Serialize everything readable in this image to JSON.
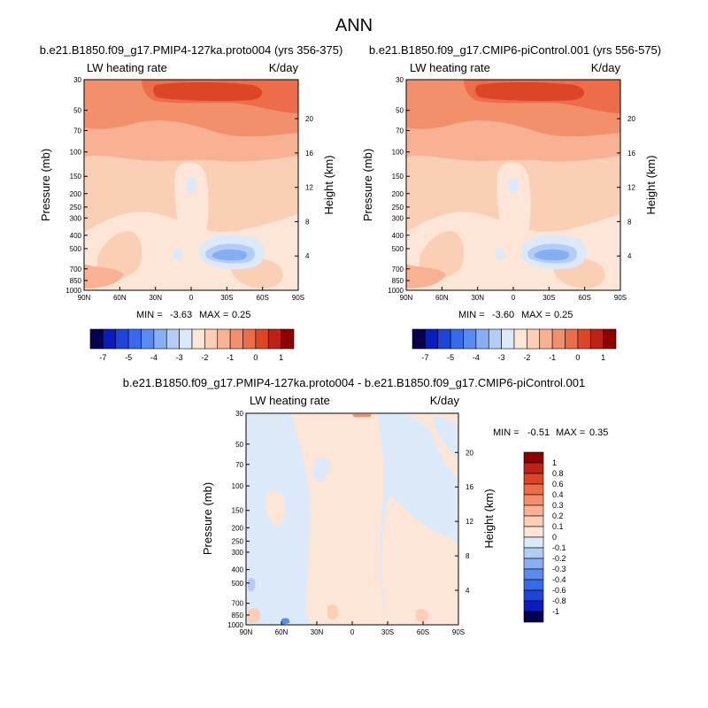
{
  "page": {
    "title": "ANN"
  },
  "chart_data": [
    {
      "type": "contour",
      "title": "b.e21.B1850.f09_g17.PMIP4-127ka.proto004 (yrs 356-375)",
      "left_label": "LW heating rate",
      "right_label": "K/day",
      "ylabel": "Pressure (mb)",
      "ylabel_right": "Height (km)",
      "x_ticks": [
        "90N",
        "60N",
        "30N",
        "0",
        "30S",
        "60S",
        "90S"
      ],
      "p_ticks": [
        "30",
        "50",
        "70",
        "100",
        "150",
        "200",
        "250",
        "300",
        "400",
        "500",
        "700",
        "850",
        "1000"
      ],
      "p_values": [
        30,
        50,
        70,
        100,
        150,
        200,
        250,
        300,
        400,
        500,
        700,
        850,
        1000
      ],
      "h_ticks": [
        "20",
        "16",
        "12",
        "8",
        "4"
      ],
      "h_values": [
        20,
        16,
        12,
        8,
        4
      ],
      "stats": {
        "min_label": "MIN =",
        "min": "-3.63",
        "max_label": "MAX =",
        "max": "0.25"
      },
      "colorbar": {
        "labels": [
          "-7",
          "-5",
          "-4",
          "-3",
          "-2",
          "-1",
          "0",
          "1"
        ],
        "colors": [
          "#05004d",
          "#0a1cbf",
          "#1e44d8",
          "#3869e8",
          "#5a8aee",
          "#86aef2",
          "#b3cdf7",
          "#dce9f9",
          "#fde6d8",
          "#fbcfb6",
          "#f8b293",
          "#f3906c",
          "#ed6c49",
          "#de4526",
          "#bc2215",
          "#8c0000"
        ]
      }
    },
    {
      "type": "contour",
      "title": "b.e21.B1850.f09_g17.CMIP6-piControl.001 (yrs 556-575)",
      "left_label": "LW heating rate",
      "right_label": "K/day",
      "ylabel": "Pressure (mb)",
      "ylabel_right": "Height (km)",
      "x_ticks": [
        "90N",
        "60N",
        "30N",
        "0",
        "30S",
        "60S",
        "90S"
      ],
      "p_ticks": [
        "30",
        "50",
        "70",
        "100",
        "150",
        "200",
        "250",
        "300",
        "400",
        "500",
        "700",
        "850",
        "1000"
      ],
      "p_values": [
        30,
        50,
        70,
        100,
        150,
        200,
        250,
        300,
        400,
        500,
        700,
        850,
        1000
      ],
      "h_ticks": [
        "20",
        "16",
        "12",
        "8",
        "4"
      ],
      "h_values": [
        20,
        16,
        12,
        8,
        4
      ],
      "stats": {
        "min_label": "MIN =",
        "min": "-3.60",
        "max_label": "MAX =",
        "max": "0.25"
      },
      "colorbar": {
        "labels": [
          "-7",
          "-5",
          "-4",
          "-3",
          "-2",
          "-1",
          "0",
          "1"
        ],
        "colors": [
          "#05004d",
          "#0a1cbf",
          "#1e44d8",
          "#3869e8",
          "#5a8aee",
          "#86aef2",
          "#b3cdf7",
          "#dce9f9",
          "#fde6d8",
          "#fbcfb6",
          "#f8b293",
          "#f3906c",
          "#ed6c49",
          "#de4526",
          "#bc2215",
          "#8c0000"
        ]
      }
    },
    {
      "type": "contour",
      "title": "b.e21.B1850.f09_g17.PMIP4-127ka.proto004 - b.e21.B1850.f09_g17.CMIP6-piControl.001",
      "left_label": "LW heating rate",
      "right_label": "K/day",
      "ylabel": "Pressure (mb)",
      "ylabel_right": "Height (km)",
      "x_ticks": [
        "90N",
        "60N",
        "30N",
        "0",
        "30S",
        "60S",
        "90S"
      ],
      "p_ticks": [
        "30",
        "50",
        "70",
        "100",
        "150",
        "200",
        "250",
        "300",
        "400",
        "500",
        "700",
        "850",
        "1000"
      ],
      "p_values": [
        30,
        50,
        70,
        100,
        150,
        200,
        250,
        300,
        400,
        500,
        700,
        850,
        1000
      ],
      "h_ticks": [
        "20",
        "16",
        "12",
        "8",
        "4"
      ],
      "h_values": [
        20,
        16,
        12,
        8,
        4
      ],
      "stats": {
        "min_label": "MIN =",
        "min": "-0.51",
        "max_label": "MAX =",
        "max": "0.35"
      },
      "colorbar": {
        "labels": [
          "1",
          "0.8",
          "0.6",
          "0.4",
          "0.3",
          "0.2",
          "0.1",
          "0",
          "-0.1",
          "-0.2",
          "-0.3",
          "-0.4",
          "-0.6",
          "-0.8",
          "-1"
        ],
        "colors": [
          "#8c0000",
          "#bc2215",
          "#de4526",
          "#ed6c49",
          "#f3906c",
          "#f8b293",
          "#fbcfb6",
          "#fde6d8",
          "#dce9f9",
          "#b3cdf7",
          "#86aef2",
          "#5a8aee",
          "#3869e8",
          "#1e44d8",
          "#0a1cbf",
          "#05004d"
        ]
      }
    }
  ]
}
